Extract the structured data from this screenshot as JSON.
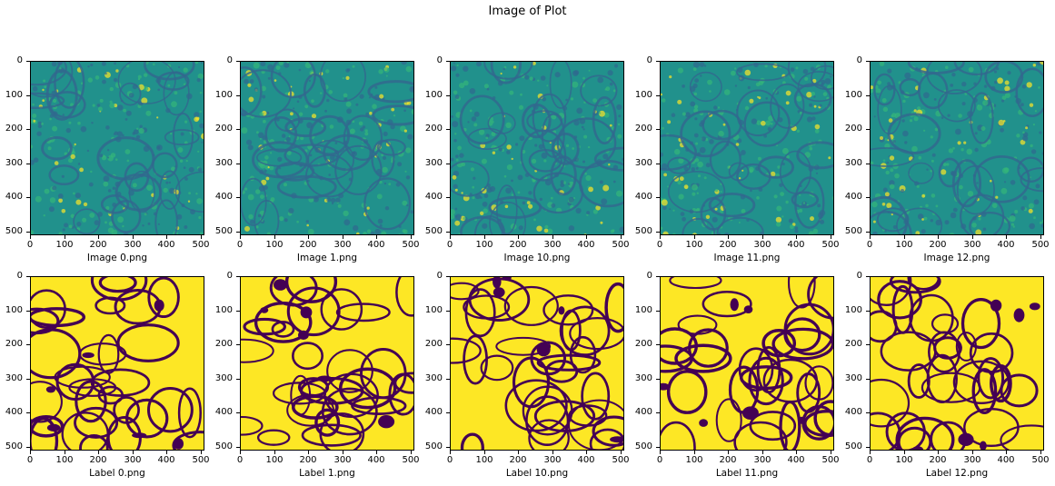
{
  "title": "Image of Plot",
  "axis": {
    "yticks": [
      "0",
      "100",
      "200",
      "300",
      "400",
      "500"
    ],
    "xticks": [
      "0",
      "100",
      "200",
      "300",
      "400",
      "500"
    ]
  },
  "colors": {
    "viridis_dark": "#440154",
    "viridis_blue": "#31688e",
    "viridis_teal": "#21918c",
    "viridis_green": "#35b779",
    "viridis_yellow": "#fde725"
  },
  "panels": {
    "images": [
      {
        "caption": "Image 0.png"
      },
      {
        "caption": "Image 1.png"
      },
      {
        "caption": "Image 10.png"
      },
      {
        "caption": "Image 11.png"
      },
      {
        "caption": "Image 12.png"
      }
    ],
    "labels": [
      {
        "caption": "Label 0.png"
      },
      {
        "caption": "Label 1.png"
      },
      {
        "caption": "Label 10.png"
      },
      {
        "caption": "Label 11.png"
      },
      {
        "caption": "Label 12.png"
      }
    ]
  }
}
